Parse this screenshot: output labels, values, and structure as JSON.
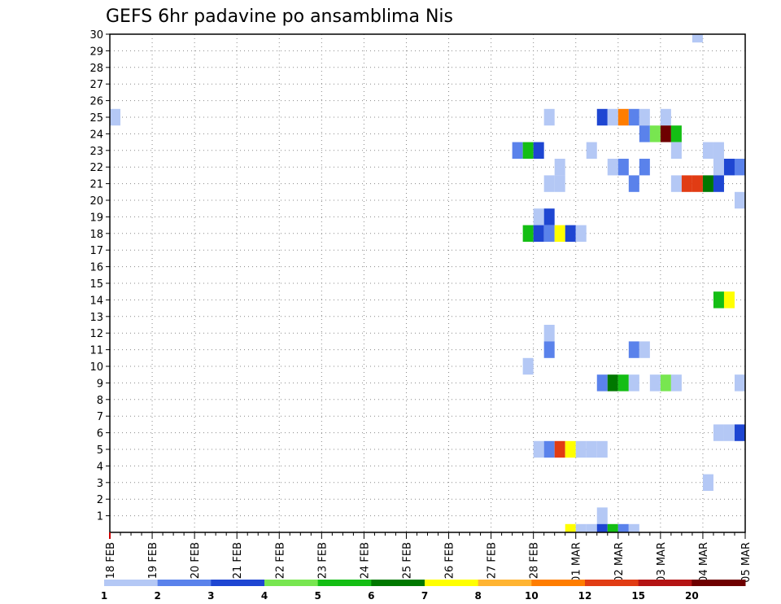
{
  "chart_data": {
    "type": "heatmap",
    "title": "GEFS 6hr padavine po ansamblima Nis",
    "y": {
      "ticks": [
        1,
        2,
        3,
        4,
        5,
        6,
        7,
        8,
        9,
        10,
        11,
        12,
        13,
        14,
        15,
        16,
        17,
        18,
        19,
        20,
        21,
        22,
        23,
        24,
        25,
        26,
        27,
        28,
        29,
        30
      ],
      "range": [
        0,
        30
      ],
      "meaning": "ensemble member"
    },
    "x": {
      "ticks": [
        "18 FEB",
        "19 FEB",
        "20 FEB",
        "21 FEB",
        "22 FEB",
        "23 FEB",
        "24 FEB",
        "25 FEB",
        "26 FEB",
        "27 FEB",
        "28 FEB",
        "01 MAR",
        "02 MAR",
        "03 MAR",
        "04 MAR",
        "05 MAR"
      ],
      "steps_per_day": 4,
      "total_steps": 60
    },
    "grid": true,
    "legend": {
      "placement": "bottom",
      "labels": [
        "1",
        "2",
        "3",
        "4",
        "5",
        "6",
        "7",
        "8",
        "10",
        "12",
        "15",
        "20"
      ],
      "colors": [
        "#b4c8f5",
        "#5a82eb",
        "#1e46d2",
        "#78e650",
        "#14be14",
        "#007800",
        "#ffff00",
        "#ffb432",
        "#ff7d00",
        "#e13c14",
        "#b41414",
        "#6e0000"
      ]
    },
    "cells": [
      {
        "s": 0,
        "m": 25,
        "l": 1
      },
      {
        "s": 41,
        "m": 25,
        "l": 1
      },
      {
        "s": 46,
        "m": 25,
        "l": 3
      },
      {
        "s": 47,
        "m": 25,
        "l": 1
      },
      {
        "s": 48,
        "m": 25,
        "l": 9
      },
      {
        "s": 49,
        "m": 25,
        "l": 2
      },
      {
        "s": 50,
        "m": 25,
        "l": 1
      },
      {
        "s": 52,
        "m": 25,
        "l": 1
      },
      {
        "s": 50,
        "m": 24,
        "l": 2
      },
      {
        "s": 51,
        "m": 24,
        "l": 4
      },
      {
        "s": 52,
        "m": 24,
        "l": 12
      },
      {
        "s": 53,
        "m": 24,
        "l": 5
      },
      {
        "s": 38,
        "m": 23,
        "l": 2
      },
      {
        "s": 39,
        "m": 23,
        "l": 5
      },
      {
        "s": 40,
        "m": 23,
        "l": 3
      },
      {
        "s": 45,
        "m": 23,
        "l": 1
      },
      {
        "s": 53,
        "m": 23,
        "l": 1
      },
      {
        "s": 56,
        "m": 23,
        "l": 1
      },
      {
        "s": 57,
        "m": 23,
        "l": 1
      },
      {
        "s": 42,
        "m": 22,
        "l": 1
      },
      {
        "s": 47,
        "m": 22,
        "l": 1
      },
      {
        "s": 48,
        "m": 22,
        "l": 2
      },
      {
        "s": 50,
        "m": 22,
        "l": 2
      },
      {
        "s": 57,
        "m": 22,
        "l": 1
      },
      {
        "s": 58,
        "m": 22,
        "l": 3
      },
      {
        "s": 59,
        "m": 22,
        "l": 2
      },
      {
        "s": 41,
        "m": 21,
        "l": 1
      },
      {
        "s": 42,
        "m": 21,
        "l": 1
      },
      {
        "s": 49,
        "m": 21,
        "l": 2
      },
      {
        "s": 53,
        "m": 21,
        "l": 1
      },
      {
        "s": 54,
        "m": 21,
        "l": 10
      },
      {
        "s": 55,
        "m": 21,
        "l": 10
      },
      {
        "s": 56,
        "m": 21,
        "l": 6
      },
      {
        "s": 57,
        "m": 21,
        "l": 3
      },
      {
        "s": 59,
        "m": 20,
        "l": 1
      },
      {
        "s": 40,
        "m": 19,
        "l": 1
      },
      {
        "s": 41,
        "m": 19,
        "l": 3
      },
      {
        "s": 39,
        "m": 18,
        "l": 5
      },
      {
        "s": 40,
        "m": 18,
        "l": 3
      },
      {
        "s": 41,
        "m": 18,
        "l": 2
      },
      {
        "s": 42,
        "m": 18,
        "l": 7
      },
      {
        "s": 43,
        "m": 18,
        "l": 3
      },
      {
        "s": 44,
        "m": 18,
        "l": 1
      },
      {
        "s": 57,
        "m": 14,
        "l": 5
      },
      {
        "s": 58,
        "m": 14,
        "l": 7
      },
      {
        "s": 41,
        "m": 12,
        "l": 1
      },
      {
        "s": 41,
        "m": 11,
        "l": 2
      },
      {
        "s": 49,
        "m": 11,
        "l": 2
      },
      {
        "s": 50,
        "m": 11,
        "l": 1
      },
      {
        "s": 39,
        "m": 10,
        "l": 1
      },
      {
        "s": 46,
        "m": 9,
        "l": 2
      },
      {
        "s": 47,
        "m": 9,
        "l": 6
      },
      {
        "s": 48,
        "m": 9,
        "l": 5
      },
      {
        "s": 49,
        "m": 9,
        "l": 1
      },
      {
        "s": 51,
        "m": 9,
        "l": 1
      },
      {
        "s": 52,
        "m": 9,
        "l": 4
      },
      {
        "s": 53,
        "m": 9,
        "l": 1
      },
      {
        "s": 59,
        "m": 9,
        "l": 1
      },
      {
        "s": 57,
        "m": 6,
        "l": 1
      },
      {
        "s": 58,
        "m": 6,
        "l": 1
      },
      {
        "s": 59,
        "m": 6,
        "l": 3
      },
      {
        "s": 40,
        "m": 5,
        "l": 1
      },
      {
        "s": 41,
        "m": 5,
        "l": 2
      },
      {
        "s": 42,
        "m": 5,
        "l": 10
      },
      {
        "s": 43,
        "m": 5,
        "l": 7
      },
      {
        "s": 44,
        "m": 5,
        "l": 1
      },
      {
        "s": 45,
        "m": 5,
        "l": 1
      },
      {
        "s": 46,
        "m": 5,
        "l": 1
      },
      {
        "s": 56,
        "m": 3,
        "l": 1
      },
      {
        "s": 46,
        "m": 1,
        "l": 1
      },
      {
        "s": 43,
        "m": 0,
        "l": 7
      },
      {
        "s": 44,
        "m": 0,
        "l": 1
      },
      {
        "s": 45,
        "m": 0,
        "l": 1
      },
      {
        "s": 46,
        "m": 0,
        "l": 3
      },
      {
        "s": 47,
        "m": 0,
        "l": 5
      },
      {
        "s": 48,
        "m": 0,
        "l": 2
      },
      {
        "s": 49,
        "m": 0,
        "l": 1
      },
      {
        "s": 55,
        "m": 30,
        "l": 1
      }
    ]
  }
}
